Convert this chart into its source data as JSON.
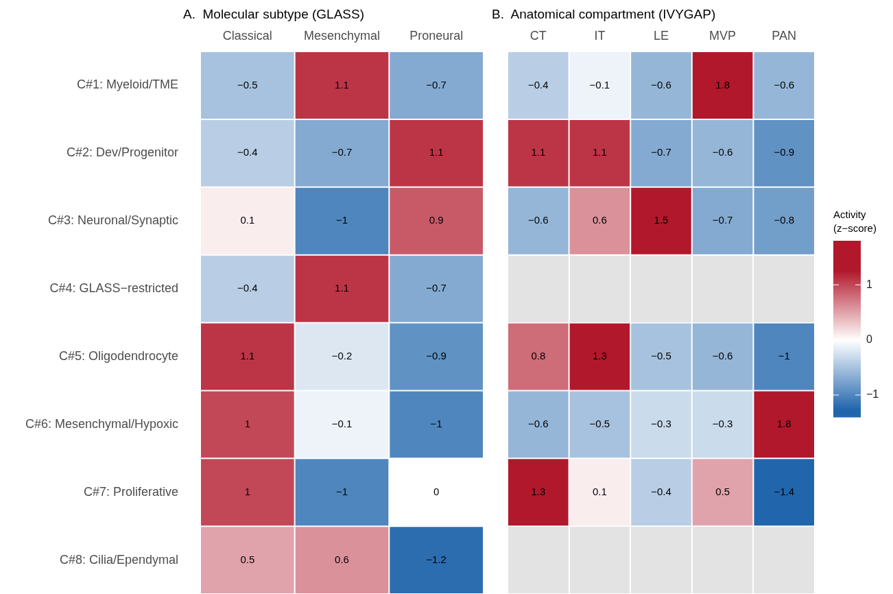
{
  "chart_data": [
    {
      "type": "heatmap",
      "title": "A.  Molecular subtype (GLASS)",
      "categories": [
        "Classical",
        "Mesenchymal",
        "Proneural"
      ],
      "y_categories": [
        "C#1: Myeloid/TME",
        "C#2: Dev/Progenitor",
        "C#3: Neuronal/Synaptic",
        "C#4: GLASS−restricted",
        "C#5: Oligodendrocyte",
        "C#6: Mesenchymal/Hypoxic",
        "C#7: Proliferative",
        "C#8: Cilia/Ependymal"
      ],
      "cells": [
        [
          -0.5,
          1.1,
          -0.7
        ],
        [
          -0.4,
          -0.7,
          1.1
        ],
        [
          0.1,
          -1,
          0.9
        ],
        [
          -0.4,
          1.1,
          -0.7
        ],
        [
          1.1,
          -0.2,
          -0.9
        ],
        [
          1,
          -0.1,
          -1
        ],
        [
          1,
          -1,
          0
        ],
        [
          0.5,
          0.6,
          -1.2
        ]
      ],
      "data_labels": true
    },
    {
      "type": "heatmap",
      "title": "B.  Anatomical compartment (IVYGAP)",
      "categories": [
        "CT",
        "IT",
        "LE",
        "MVP",
        "PAN"
      ],
      "y_categories": [
        "C#1: Myeloid/TME",
        "C#2: Dev/Progenitor",
        "C#3: Neuronal/Synaptic",
        "C#4: GLASS−restricted",
        "C#5: Oligodendrocyte",
        "C#6: Mesenchymal/Hypoxic",
        "C#7: Proliferative",
        "C#8: Cilia/Ependymal"
      ],
      "cells": [
        [
          -0.4,
          -0.1,
          -0.6,
          1.8,
          -0.6
        ],
        [
          1.1,
          1.1,
          -0.7,
          -0.6,
          -0.9
        ],
        [
          -0.6,
          0.6,
          1.5,
          -0.7,
          -0.8
        ],
        [
          null,
          null,
          null,
          null,
          null
        ],
        [
          0.8,
          1.3,
          -0.5,
          -0.6,
          -1
        ],
        [
          -0.6,
          -0.5,
          -0.3,
          -0.3,
          1.8
        ],
        [
          1.3,
          0.1,
          -0.4,
          0.5,
          -1.4
        ],
        [
          null,
          null,
          null,
          null,
          null
        ]
      ],
      "clim": [
        -1.4,
        1.8
      ],
      "cticks": [
        {
          "value": -1,
          "label": "−1"
        },
        0,
        1
      ],
      "clabel": "Activity (z−score)",
      "data_labels": true,
      "tick_labels": "x"
    }
  ]
}
